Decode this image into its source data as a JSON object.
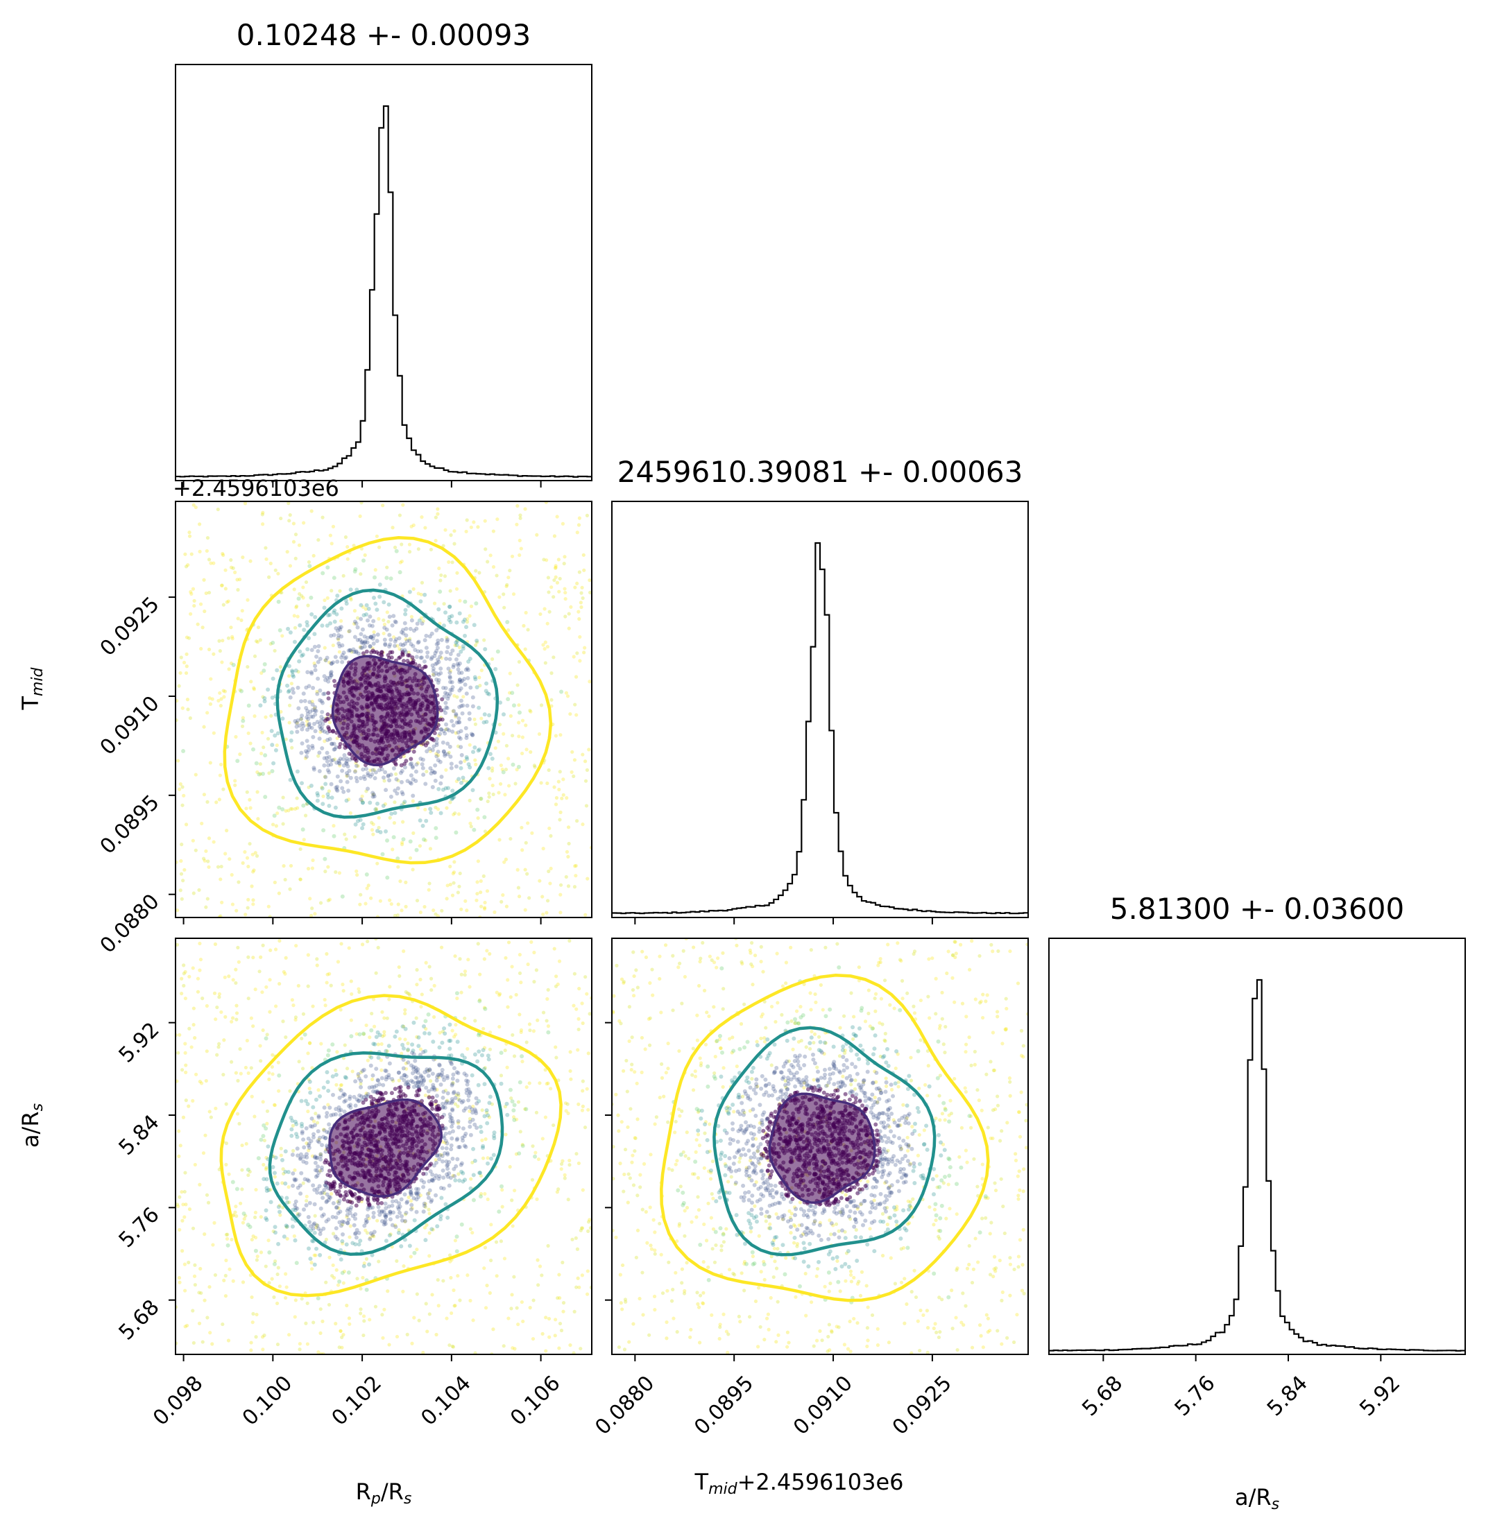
{
  "figure": {
    "type": "corner",
    "background": "#ffffff",
    "colors": {
      "hist": "#000000",
      "contour_outer": "#fde725",
      "contour_mid": "#21908d",
      "contour_inner": "#472d7b",
      "core": "#440154"
    }
  },
  "chart_data": {
    "type": "corner",
    "parameters": [
      {
        "id": "rp",
        "axis_label_base": "R",
        "axis_label_sub1": "p",
        "axis_label_mid": "/R",
        "axis_label_sub2": "s",
        "title": "0.10248 +- 0.00093",
        "median": 0.10248,
        "sigma": 0.00093,
        "range": [
          0.09782,
          0.10714
        ],
        "ticks": [
          0.098,
          0.1,
          0.102,
          0.104,
          0.106
        ],
        "tick_labels": [
          "0.098",
          "0.100",
          "0.102",
          "0.104",
          "0.106"
        ]
      },
      {
        "id": "tmid",
        "axis_label_base": "T",
        "axis_label_sub1": "mid",
        "axis_label_mid": "",
        "axis_label_sub2": "",
        "title": "2459610.39081 +- 0.00063",
        "median": 0.09081,
        "sigma": 0.00063,
        "offset_text": "+2.4596103e6",
        "x_label_full": "T",
        "range": [
          0.08765,
          0.09395
        ],
        "ticks": [
          0.088,
          0.0895,
          0.091,
          0.0925
        ],
        "tick_labels": [
          "0.0880",
          "0.0895",
          "0.0910",
          "0.0925"
        ]
      },
      {
        "id": "ars",
        "axis_label_base": "a/R",
        "axis_label_sub1": "",
        "axis_label_mid": "",
        "axis_label_sub2": "s",
        "title": "5.81300 +- 0.03600",
        "median": 5.813,
        "sigma": 0.036,
        "range": [
          5.633,
          5.993
        ],
        "ticks": [
          5.68,
          5.76,
          5.84,
          5.92
        ],
        "tick_labels": [
          "5.68",
          "5.76",
          "5.84",
          "5.92"
        ]
      }
    ],
    "offset_label": "+2.4596103e6",
    "histograms": [
      {
        "param": "rp",
        "bins": 90,
        "peak_bin": 45
      },
      {
        "param": "tmid",
        "bins": 90,
        "peak_bin": 44
      },
      {
        "param": "ars",
        "bins": 90,
        "peak_bin": 45
      }
    ],
    "scatter_panels": [
      {
        "x": "rp",
        "y": "tmid",
        "correlation": 0.0
      },
      {
        "x": "rp",
        "y": "ars",
        "correlation": 0.35
      },
      {
        "x": "tmid",
        "y": "ars",
        "correlation": 0.0
      }
    ],
    "contour_levels_sigma": [
      0.5,
      1.0,
      1.5
    ],
    "grid": false,
    "legend": "none"
  }
}
